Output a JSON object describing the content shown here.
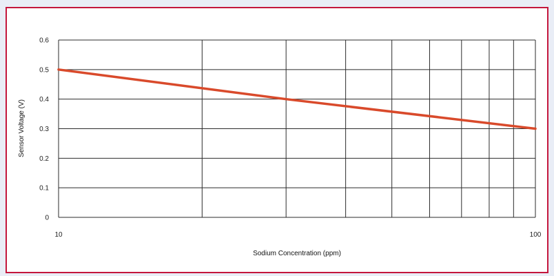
{
  "chart_data": {
    "type": "line",
    "title": "",
    "xlabel": "Sodium Concentration (ppm)",
    "ylabel": "Sensor Voltage (V)",
    "x_scale": "log",
    "xlim": [
      10,
      100
    ],
    "ylim": [
      0,
      0.6
    ],
    "x_tick_labels": [
      "10",
      "100"
    ],
    "y_tick_labels": [
      "0",
      "0.1",
      "0.2",
      "0.3",
      "0.4",
      "0.5",
      "0.6"
    ],
    "x_minor_grid": [
      20,
      30,
      40,
      50,
      60,
      70,
      80,
      90
    ],
    "grid": true,
    "line_color": "#d94a2b",
    "border_color": "#c4163c",
    "series": [
      {
        "x": [
          10,
          30,
          100
        ],
        "y": [
          0.5,
          0.4,
          0.3
        ]
      }
    ]
  }
}
